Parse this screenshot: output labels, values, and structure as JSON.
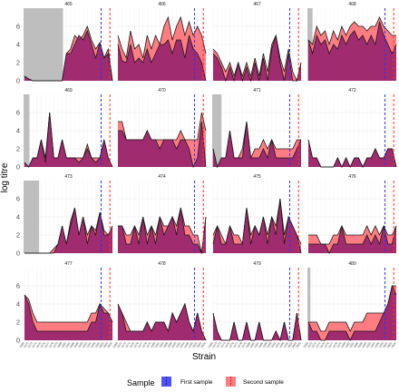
{
  "chart_data": {
    "type": "area",
    "ylabel": "log titre",
    "xlabel": "Strain",
    "ylim": [
      0,
      8
    ],
    "yticks": [
      0,
      2,
      4,
      6
    ],
    "grid": true,
    "legend": {
      "title": "Sample",
      "placement": "bottom",
      "entries": [
        "First sample",
        "Second sample"
      ]
    },
    "colors": {
      "first": "#8b1a6b",
      "second": "#ff6f73",
      "first_line": "#3333ff",
      "second_line": "#ff3333",
      "shade": "#bebebe",
      "strip": "#ffffff",
      "grid": "#ebebeb"
    },
    "strains": [
      "1968",
      "1972",
      "1973",
      "1974",
      "1975",
      "1976",
      "1977",
      "1978",
      "1979",
      "1980",
      "1982",
      "1984",
      "1986",
      "1988",
      "1990",
      "1992",
      "1994",
      "1996",
      "1999",
      "2002",
      "2003",
      "2004"
    ],
    "first_sample_index": 18.3,
    "second_sample_index": 20.4,
    "panels": [
      {
        "id": "465",
        "shade_to": 9.2,
        "first": [
          0.5,
          0.2,
          0,
          0,
          0,
          0,
          0,
          0,
          0,
          0,
          3,
          3,
          4,
          5,
          4.5,
          5.5,
          4,
          2.5,
          4.2,
          2.5,
          3,
          0
        ],
        "second": [
          0.5,
          0.2,
          0,
          0,
          0,
          0,
          0,
          0,
          0,
          0,
          3,
          3.5,
          5,
          4.5,
          5,
          6,
          4.5,
          3.5,
          4.2,
          2.5,
          3.5,
          0
        ]
      },
      {
        "id": "466",
        "shade_to": null,
        "first": [
          4,
          2.2,
          2,
          4,
          2,
          2.5,
          2,
          3.5,
          2,
          3,
          4,
          4,
          4.5,
          3,
          4.5,
          4.5,
          2.5,
          5,
          3.5,
          3,
          2,
          0
        ],
        "second": [
          5,
          3.5,
          2.5,
          5.5,
          3.5,
          4,
          2.5,
          5,
          3.5,
          5,
          4,
          6,
          7,
          4.5,
          6,
          7,
          5,
          6.5,
          5,
          6,
          5,
          3
        ]
      },
      {
        "id": "467",
        "shade_to": null,
        "first": [
          3,
          2.5,
          1.5,
          0,
          1.5,
          0,
          2,
          0,
          1.5,
          0,
          2,
          0,
          2.5,
          0,
          3.5,
          5,
          2,
          0,
          3,
          0,
          0,
          2
        ],
        "second": [
          3.5,
          3,
          2,
          1,
          2,
          0.5,
          2,
          0.5,
          2,
          0.5,
          2.5,
          0.5,
          3,
          1,
          4,
          5,
          2.5,
          1,
          3.5,
          1,
          0,
          2
        ]
      },
      {
        "id": "468",
        "shade_to": 1,
        "first": [
          4.5,
          3,
          5,
          4,
          4.5,
          3,
          4,
          3.5,
          5,
          4,
          5,
          5.5,
          4.5,
          5,
          4,
          5,
          4,
          6.5,
          5,
          4,
          3,
          4
        ],
        "second": [
          4.5,
          4,
          6,
          5,
          5.5,
          4,
          5.5,
          4.5,
          6,
          5,
          6,
          6.5,
          6,
          6,
          5.5,
          6,
          6,
          7,
          6,
          5.5,
          5,
          5
        ]
      },
      {
        "id": "469",
        "shade_to": 1.2,
        "first": [
          0.5,
          0,
          1,
          1,
          3,
          0.5,
          6,
          1,
          1,
          3,
          1,
          1,
          1,
          0.5,
          1,
          2,
          1,
          0.5,
          1,
          3,
          1,
          0
        ],
        "second": [
          0.5,
          0,
          1,
          1,
          3,
          1,
          6,
          1,
          1,
          3,
          1,
          1,
          1,
          1,
          1,
          2.5,
          1,
          1,
          1,
          3,
          1,
          0
        ]
      },
      {
        "id": "470",
        "shade_to": null,
        "first": [
          4,
          4,
          3,
          3,
          3,
          3,
          3,
          4,
          3,
          3,
          2,
          3,
          3,
          3,
          2,
          3,
          3,
          2,
          0,
          1,
          5,
          0
        ],
        "second": [
          5,
          5,
          3,
          3,
          3,
          3,
          3,
          4,
          3,
          3,
          3,
          3,
          3,
          3,
          3,
          4,
          3,
          3,
          3,
          3,
          6,
          4
        ]
      },
      {
        "id": "471",
        "shade_to": 2,
        "first": [
          2,
          0,
          1,
          1,
          4,
          1,
          1,
          1,
          5,
          1,
          1,
          1,
          2,
          1,
          3,
          1,
          1,
          1,
          1,
          1,
          2,
          3
        ],
        "second": [
          2,
          0,
          1,
          1,
          4,
          1,
          1,
          2,
          5,
          1,
          2,
          2,
          3,
          2,
          3,
          2,
          2,
          2,
          2,
          2,
          3,
          3
        ]
      },
      {
        "id": "472",
        "shade_to": null,
        "first": [
          3,
          1,
          1,
          0,
          0,
          0,
          0,
          1,
          0,
          1,
          0,
          1,
          1,
          0,
          1,
          1,
          2,
          1,
          1,
          2,
          2,
          0
        ],
        "second": [
          3,
          1,
          1,
          0,
          0,
          0,
          0,
          1,
          0,
          1,
          0,
          1,
          1,
          0,
          1,
          1,
          2,
          1,
          1,
          2,
          2,
          0
        ]
      },
      {
        "id": "473",
        "shade_to": 3.5,
        "first": [
          0,
          0,
          0,
          0,
          0,
          0,
          0,
          0,
          1,
          3,
          1,
          3,
          5,
          2,
          4,
          1,
          3,
          2,
          4.5,
          2,
          2,
          3
        ],
        "second": [
          0,
          0,
          0,
          0,
          0,
          0,
          0,
          0.5,
          1,
          3,
          1,
          3.5,
          5,
          2,
          4,
          2,
          3,
          2.5,
          4.5,
          2.5,
          2,
          3
        ]
      },
      {
        "id": "474",
        "shade_to": null,
        "first": [
          3,
          3,
          1,
          1,
          3,
          1,
          4,
          1,
          3,
          1,
          4,
          2,
          3,
          4,
          2,
          5,
          2,
          2,
          1,
          1,
          0,
          4
        ],
        "second": [
          3,
          3,
          2,
          2,
          3,
          2,
          4,
          2,
          3,
          2,
          4,
          3,
          3,
          4,
          3,
          5,
          3,
          3,
          2,
          2,
          0,
          4
        ]
      },
      {
        "id": "475",
        "shade_to": null,
        "first": [
          1,
          3,
          1,
          1,
          3,
          1,
          1,
          1,
          5,
          1,
          3,
          2,
          4,
          1,
          4,
          2,
          6,
          1,
          4,
          3,
          2,
          0
        ],
        "second": [
          2,
          3,
          2,
          1,
          3,
          2,
          2,
          1,
          5,
          2,
          3,
          2,
          4,
          2,
          4,
          3,
          6,
          2,
          4,
          3,
          2,
          1
        ]
      },
      {
        "id": "476",
        "shade_to": null,
        "first": [
          1,
          1,
          1,
          1,
          1,
          0,
          1,
          1,
          3,
          1,
          1,
          1,
          1,
          1,
          2,
          1,
          2,
          1,
          3,
          1,
          1,
          3
        ],
        "second": [
          2,
          2,
          2,
          1,
          1,
          1,
          2,
          2,
          3,
          2,
          2,
          2,
          2,
          2,
          3,
          2,
          3,
          2,
          3,
          2,
          2,
          3
        ]
      },
      {
        "id": "477",
        "shade_to": null,
        "first": [
          5,
          4,
          2,
          1,
          1,
          1,
          1,
          1,
          1,
          1,
          1,
          1,
          1,
          1,
          1,
          1,
          2,
          2,
          4,
          3,
          3,
          2
        ],
        "second": [
          5,
          4.5,
          3,
          2,
          2,
          2,
          2,
          2,
          2,
          2,
          2,
          2,
          2,
          2,
          2,
          2,
          3,
          3,
          4,
          3.5,
          3,
          2
        ]
      },
      {
        "id": "478",
        "shade_to": null,
        "first": [
          4,
          3,
          1,
          1,
          1,
          1,
          1,
          2,
          1,
          2,
          2,
          2,
          1,
          3,
          2,
          3,
          4,
          2,
          1,
          3,
          1,
          0
        ],
        "second": [
          4,
          3,
          2,
          1,
          1,
          1,
          1,
          2,
          1,
          2,
          2,
          2,
          1,
          3,
          2,
          3,
          4,
          2,
          1,
          3,
          1,
          0
        ]
      },
      {
        "id": "479",
        "shade_to": null,
        "first": [
          3,
          1,
          0,
          0,
          0,
          2,
          0,
          0,
          2,
          0,
          0,
          2,
          0,
          0,
          0,
          1,
          0,
          2,
          0,
          0,
          3,
          0
        ],
        "second": [
          3,
          1,
          0,
          0,
          0,
          2,
          0,
          0,
          2,
          0,
          0,
          2,
          0,
          0,
          0,
          1,
          0,
          2,
          0,
          0,
          3,
          0
        ]
      },
      {
        "id": "480",
        "shade_to": 0.5,
        "first": [
          2,
          1,
          1,
          0,
          0,
          1,
          1,
          1,
          1,
          1,
          0,
          1,
          1,
          1,
          1,
          1,
          1,
          2,
          3,
          4,
          6,
          5
        ],
        "second": [
          2,
          2,
          2,
          1,
          1,
          2,
          2,
          2,
          2,
          2,
          1,
          2,
          2,
          2,
          3,
          3,
          3,
          3,
          3,
          4,
          6,
          6
        ]
      }
    ]
  }
}
